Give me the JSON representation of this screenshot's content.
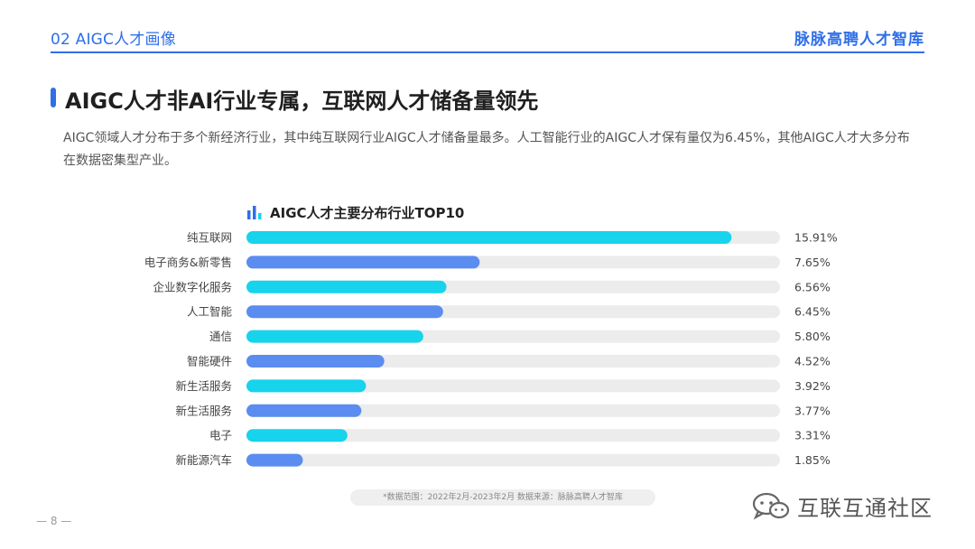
{
  "header": {
    "section": "02 AIGC人才画像",
    "brand": "脉脉高聘人才智库"
  },
  "page_title": "AIGC人才非AI行业专属，互联网人才储备量领先",
  "description": "AIGC领域人才分布于多个新经济行业，其中纯互联网行业AIGC人才储备量最多。人工智能行业的AIGC人才保有量仅为6.45%，其他AIGC人才大多分布在数据密集型产业。",
  "colors": {
    "accent": "#2f6fe8",
    "bar_cyan": "#17d3ec",
    "bar_blue": "#5b8cf0",
    "track": "#ececec"
  },
  "chart_data": {
    "type": "bar",
    "orientation": "horizontal",
    "title": "AIGC人才主要分布行业TOP10",
    "categories": [
      "纯互联网",
      "电子商务&新零售",
      "企业数字化服务",
      "人工智能",
      "通信",
      "智能硬件",
      "新生活服务",
      "新生活服务",
      "电子",
      "新能源汽车"
    ],
    "values": [
      15.91,
      7.65,
      6.56,
      6.45,
      5.8,
      4.52,
      3.92,
      3.77,
      3.31,
      1.85
    ],
    "value_labels": [
      "15.91%",
      "7.65%",
      "6.56%",
      "6.45%",
      "5.80%",
      "4.52%",
      "3.92%",
      "3.77%",
      "3.31%",
      "1.85%"
    ],
    "xlim": [
      0,
      17.5
    ],
    "grid": false,
    "legend": "none"
  },
  "footnote": "*数据范围：2022年2月-2023年2月     数据来源：脉脉高聘人才智库",
  "page_number": "— 8 —",
  "watermark": "互联互通社区"
}
